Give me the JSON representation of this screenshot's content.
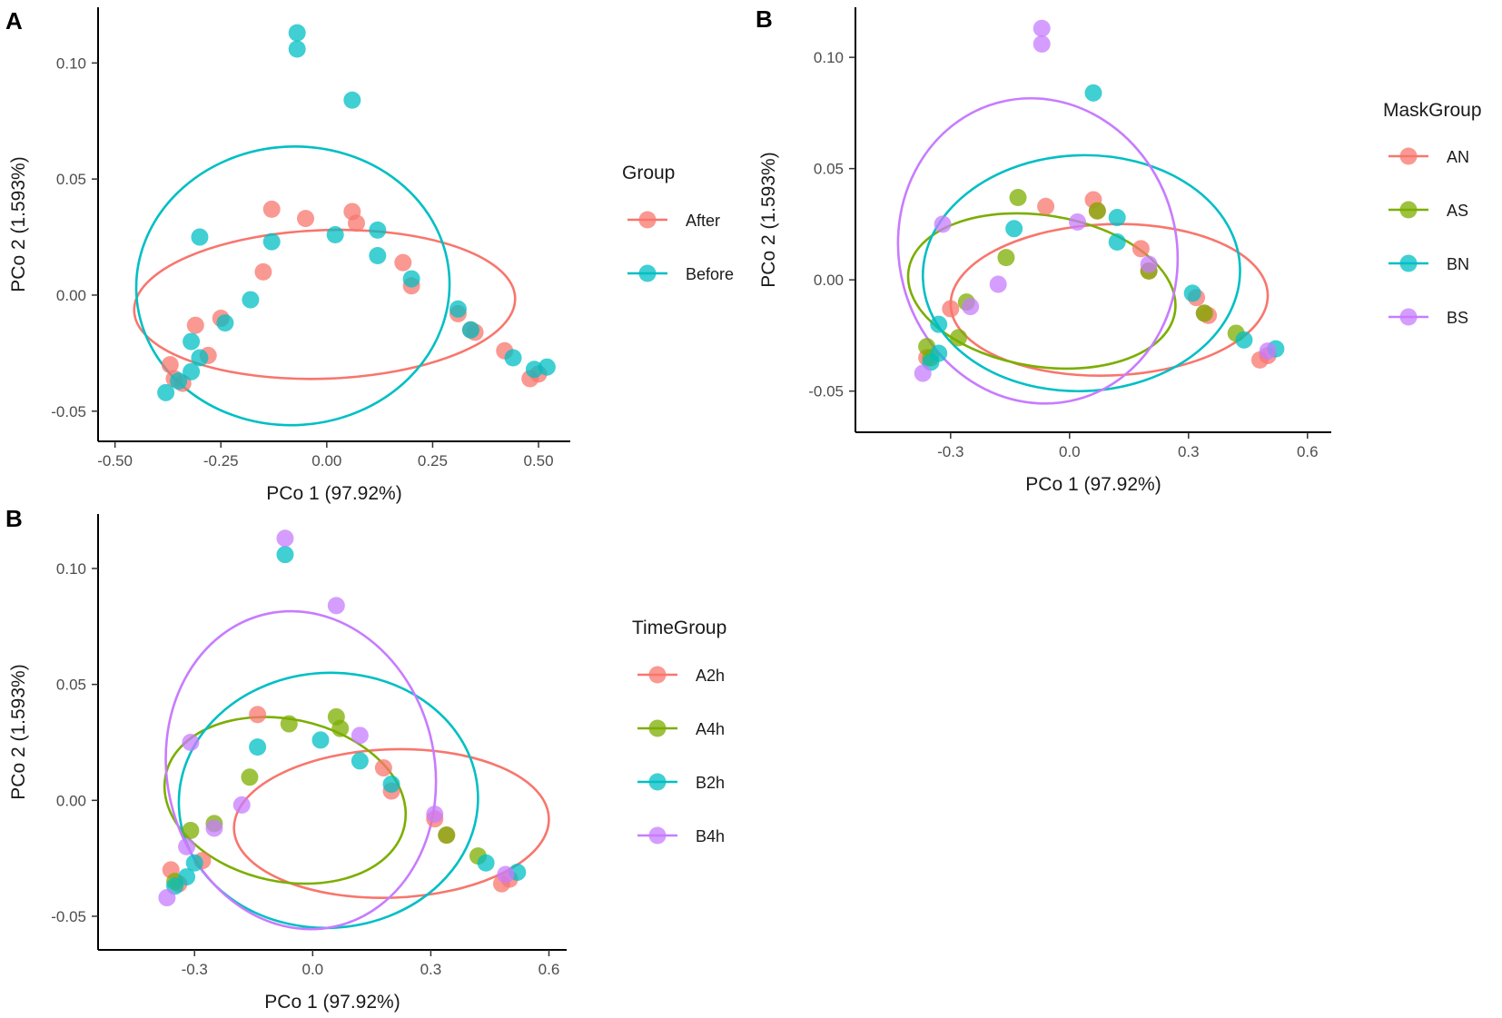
{
  "chart_data": [
    {
      "type": "scatter",
      "panel_label": "A",
      "xlabel": "PCo 1 (97.92%)",
      "ylabel": "PCo 2 (1.593%)",
      "xlim": [
        -0.54,
        0.575
      ],
      "ylim": [
        -0.063,
        0.124
      ],
      "xticks": [
        -0.5,
        -0.25,
        0.0,
        0.25,
        0.5
      ],
      "xtick_labels": [
        "-0.50",
        "-0.25",
        "0.00",
        "0.25",
        "0.50"
      ],
      "yticks": [
        -0.05,
        0.0,
        0.05,
        0.1
      ],
      "ytick_labels": [
        "-0.05",
        "0.00",
        "0.05",
        "0.10"
      ],
      "legend": {
        "title": "Group",
        "position": "right"
      },
      "series": [
        {
          "name": "After",
          "color": "#F8766D",
          "ellipse": {
            "cx": -0.005,
            "cy": -0.004,
            "rx": 0.45,
            "ry": 0.032,
            "angle": -2
          },
          "points": [
            [
              -0.37,
              -0.03
            ],
            [
              -0.36,
              -0.036
            ],
            [
              -0.34,
              -0.038
            ],
            [
              -0.31,
              -0.013
            ],
            [
              -0.28,
              -0.026
            ],
            [
              -0.25,
              -0.01
            ],
            [
              -0.15,
              0.01
            ],
            [
              -0.13,
              0.037
            ],
            [
              -0.05,
              0.033
            ],
            [
              0.06,
              0.036
            ],
            [
              0.07,
              0.031
            ],
            [
              0.18,
              0.014
            ],
            [
              0.2,
              0.004
            ],
            [
              0.31,
              -0.008
            ],
            [
              0.34,
              -0.015
            ],
            [
              0.35,
              -0.016
            ],
            [
              0.42,
              -0.024
            ],
            [
              0.48,
              -0.036
            ],
            [
              0.5,
              -0.034
            ]
          ]
        },
        {
          "name": "Before",
          "color": "#00BFC4",
          "ellipse": {
            "cx": -0.08,
            "cy": 0.004,
            "rx": 0.37,
            "ry": 0.06,
            "angle": -3
          },
          "points": [
            [
              -0.07,
              0.113
            ],
            [
              -0.07,
              0.106
            ],
            [
              0.06,
              0.084
            ],
            [
              -0.3,
              0.025
            ],
            [
              -0.13,
              0.023
            ],
            [
              0.02,
              0.026
            ],
            [
              0.12,
              0.028
            ],
            [
              0.12,
              0.017
            ],
            [
              0.2,
              0.007
            ],
            [
              -0.18,
              -0.002
            ],
            [
              -0.24,
              -0.012
            ],
            [
              -0.32,
              -0.02
            ],
            [
              -0.3,
              -0.027
            ],
            [
              -0.32,
              -0.033
            ],
            [
              -0.35,
              -0.037
            ],
            [
              -0.38,
              -0.042
            ],
            [
              0.31,
              -0.006
            ],
            [
              0.34,
              -0.015
            ],
            [
              0.44,
              -0.027
            ],
            [
              0.49,
              -0.032
            ],
            [
              0.52,
              -0.031
            ]
          ]
        }
      ]
    },
    {
      "type": "scatter",
      "panel_label": "B",
      "xlabel": "PCo 1 (97.92%)",
      "ylabel": "PCo 2 (1.593%)",
      "xlim": [
        -0.54,
        0.66
      ],
      "ylim": [
        -0.0685,
        0.1225
      ],
      "xticks": [
        -0.3,
        0.0,
        0.3,
        0.6
      ],
      "xtick_labels": [
        "-0.3",
        "0.0",
        "0.3",
        "0.6"
      ],
      "yticks": [
        -0.05,
        0.0,
        0.05,
        0.1
      ],
      "ytick_labels": [
        "-0.05",
        "0.00",
        "0.05",
        "0.10"
      ],
      "legend": {
        "title": "MaskGroup",
        "position": "right"
      },
      "series": [
        {
          "name": "AN",
          "color": "#F8766D",
          "ellipse": {
            "cx": 0.1,
            "cy": -0.009,
            "rx": 0.4,
            "ry": 0.034,
            "angle": -2
          },
          "points": [
            [
              -0.36,
              -0.035
            ],
            [
              -0.3,
              -0.013
            ],
            [
              -0.06,
              0.033
            ],
            [
              0.06,
              0.036
            ],
            [
              0.07,
              0.031
            ],
            [
              0.18,
              0.014
            ],
            [
              0.2,
              0.004
            ],
            [
              0.32,
              -0.008
            ],
            [
              0.34,
              -0.015
            ],
            [
              0.35,
              -0.016
            ],
            [
              0.48,
              -0.036
            ],
            [
              0.5,
              -0.034
            ]
          ]
        },
        {
          "name": "AS",
          "color": "#7CAE00",
          "ellipse": {
            "cx": -0.07,
            "cy": -0.005,
            "rx": 0.34,
            "ry": 0.034,
            "angle": 9
          },
          "points": [
            [
              -0.13,
              0.037
            ],
            [
              0.07,
              0.031
            ],
            [
              -0.16,
              0.01
            ],
            [
              -0.26,
              -0.01
            ],
            [
              -0.28,
              -0.026
            ],
            [
              -0.36,
              -0.03
            ],
            [
              -0.35,
              -0.035
            ],
            [
              0.2,
              0.004
            ],
            [
              0.34,
              -0.015
            ],
            [
              0.42,
              -0.024
            ]
          ]
        },
        {
          "name": "BN",
          "color": "#00BFC4",
          "ellipse": {
            "cx": 0.03,
            "cy": 0.003,
            "rx": 0.4,
            "ry": 0.053,
            "angle": -2
          },
          "points": [
            [
              0.06,
              0.084
            ],
            [
              -0.14,
              0.023
            ],
            [
              0.12,
              0.028
            ],
            [
              0.12,
              0.017
            ],
            [
              0.31,
              -0.006
            ],
            [
              -0.33,
              -0.02
            ],
            [
              -0.33,
              -0.033
            ],
            [
              -0.35,
              -0.037
            ],
            [
              0.44,
              -0.027
            ],
            [
              0.52,
              -0.031
            ]
          ]
        },
        {
          "name": "BS",
          "color": "#C77CFF",
          "ellipse": {
            "cx": -0.08,
            "cy": 0.013,
            "rx": 0.35,
            "ry": 0.069,
            "angle": -15
          },
          "points": [
            [
              -0.07,
              0.113
            ],
            [
              -0.07,
              0.106
            ],
            [
              -0.32,
              0.025
            ],
            [
              0.02,
              0.026
            ],
            [
              -0.18,
              -0.002
            ],
            [
              -0.25,
              -0.012
            ],
            [
              -0.37,
              -0.042
            ],
            [
              0.2,
              0.007
            ],
            [
              0.5,
              -0.032
            ]
          ]
        }
      ]
    },
    {
      "type": "scatter",
      "panel_label": "B",
      "xlabel": "PCo 1 (97.92%)",
      "ylabel": "PCo 2 (1.593%)",
      "xlim": [
        -0.545,
        0.645
      ],
      "ylim": [
        -0.0645,
        0.1235
      ],
      "xticks": [
        -0.3,
        0.0,
        0.3,
        0.6
      ],
      "xtick_labels": [
        "-0.3",
        "0.0",
        "0.3",
        "0.6"
      ],
      "yticks": [
        -0.05,
        0.0,
        0.05,
        0.1
      ],
      "ytick_labels": [
        "-0.05",
        "0.00",
        "0.05",
        "0.10"
      ],
      "legend": {
        "title": "TimeGroup",
        "position": "right"
      },
      "series": [
        {
          "name": "A2h",
          "color": "#F8766D",
          "ellipse": {
            "cx": 0.2,
            "cy": -0.01,
            "rx": 0.4,
            "ry": 0.032,
            "angle": -2
          },
          "points": [
            [
              -0.36,
              -0.03
            ],
            [
              -0.34,
              -0.036
            ],
            [
              -0.28,
              -0.026
            ],
            [
              -0.14,
              0.037
            ],
            [
              0.18,
              0.014
            ],
            [
              0.2,
              0.004
            ],
            [
              0.31,
              -0.008
            ],
            [
              0.34,
              -0.015
            ],
            [
              0.48,
              -0.036
            ],
            [
              0.5,
              -0.034
            ]
          ]
        },
        {
          "name": "A4h",
          "color": "#7CAE00",
          "ellipse": {
            "cx": -0.07,
            "cy": 0.0,
            "rx": 0.31,
            "ry": 0.035,
            "angle": 12
          },
          "points": [
            [
              -0.06,
              0.033
            ],
            [
              0.06,
              0.036
            ],
            [
              0.07,
              0.031
            ],
            [
              -0.16,
              0.01
            ],
            [
              -0.25,
              -0.01
            ],
            [
              -0.31,
              -0.013
            ],
            [
              -0.35,
              -0.035
            ],
            [
              0.34,
              -0.015
            ],
            [
              0.42,
              -0.024
            ]
          ]
        },
        {
          "name": "B2h",
          "color": "#00BFC4",
          "ellipse": {
            "cx": 0.04,
            "cy": 0.0,
            "rx": 0.38,
            "ry": 0.055,
            "angle": -3
          },
          "points": [
            [
              -0.07,
              0.106
            ],
            [
              -0.14,
              0.023
            ],
            [
              0.02,
              0.026
            ],
            [
              0.12,
              0.017
            ],
            [
              0.2,
              0.007
            ],
            [
              -0.3,
              -0.027
            ],
            [
              -0.32,
              -0.033
            ],
            [
              -0.35,
              -0.037
            ],
            [
              0.44,
              -0.027
            ],
            [
              0.52,
              -0.031
            ]
          ]
        },
        {
          "name": "B4h",
          "color": "#C77CFF",
          "ellipse": {
            "cx": -0.03,
            "cy": 0.013,
            "rx": 0.34,
            "ry": 0.069,
            "angle": -12
          },
          "points": [
            [
              -0.07,
              0.113
            ],
            [
              0.06,
              0.084
            ],
            [
              -0.31,
              0.025
            ],
            [
              0.12,
              0.028
            ],
            [
              -0.18,
              -0.002
            ],
            [
              -0.25,
              -0.012
            ],
            [
              -0.32,
              -0.02
            ],
            [
              -0.37,
              -0.042
            ],
            [
              0.31,
              -0.006
            ],
            [
              0.49,
              -0.032
            ]
          ]
        }
      ]
    }
  ]
}
